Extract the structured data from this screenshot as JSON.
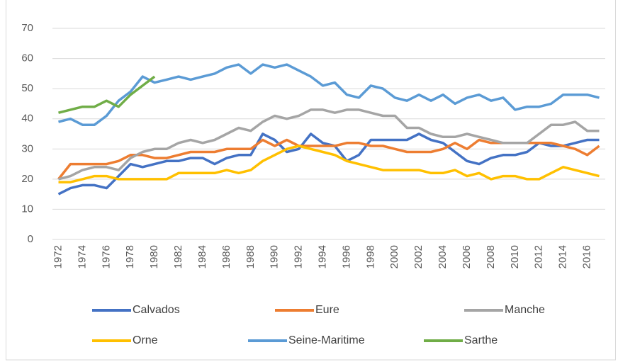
{
  "chart_data": {
    "type": "line",
    "categories": [
      "1972",
      null,
      "1974",
      null,
      "1976",
      null,
      "1978",
      null,
      "1980",
      null,
      "1982",
      null,
      "1984",
      null,
      "1986",
      null,
      "1988",
      null,
      "1990",
      null,
      "1992",
      null,
      "1994",
      null,
      "1996",
      null,
      "1998",
      null,
      "2000",
      null,
      "2002",
      null,
      "2004",
      null,
      "2006",
      null,
      "2008",
      null,
      "2010",
      null,
      "2012",
      null,
      "2014",
      null,
      "2016",
      null
    ],
    "series": [
      {
        "name": "Calvados",
        "color": "#4472c4",
        "values": [
          15,
          17,
          18,
          18,
          17,
          21,
          25,
          24,
          25,
          26,
          26,
          27,
          27,
          25,
          27,
          28,
          28,
          35,
          33,
          29,
          30,
          35,
          32,
          31,
          26,
          28,
          33,
          33,
          33,
          33,
          35,
          33,
          32,
          29,
          26,
          25,
          27,
          28,
          28,
          29,
          32,
          31,
          31,
          32,
          33,
          33
        ]
      },
      {
        "name": "Eure",
        "color": "#ed7d31",
        "values": [
          20,
          25,
          25,
          25,
          25,
          26,
          28,
          28,
          27,
          27,
          28,
          29,
          29,
          29,
          30,
          30,
          30,
          33,
          31,
          33,
          31,
          31,
          31,
          31,
          32,
          32,
          31,
          31,
          30,
          29,
          29,
          29,
          30,
          32,
          30,
          33,
          32,
          32,
          32,
          32,
          32,
          32,
          31,
          30,
          28,
          31
        ]
      },
      {
        "name": "Manche",
        "color": "#a5a5a5",
        "values": [
          20,
          21,
          23,
          24,
          24,
          23,
          27,
          29,
          30,
          30,
          32,
          33,
          32,
          33,
          35,
          37,
          36,
          39,
          41,
          40,
          41,
          43,
          43,
          42,
          43,
          43,
          42,
          41,
          41,
          37,
          37,
          35,
          34,
          34,
          35,
          34,
          33,
          32,
          32,
          32,
          35,
          38,
          38,
          39,
          36,
          36
        ]
      },
      {
        "name": "Orne",
        "color": "#ffc000",
        "values": [
          19,
          19,
          20,
          21,
          21,
          20,
          20,
          20,
          20,
          20,
          22,
          22,
          22,
          22,
          23,
          22,
          23,
          26,
          28,
          30,
          31,
          30,
          29,
          28,
          26,
          25,
          24,
          23,
          23,
          23,
          23,
          22,
          22,
          23,
          21,
          22,
          20,
          21,
          21,
          20,
          20,
          22,
          24,
          23,
          22,
          21
        ]
      },
      {
        "name": "Seine-Maritime",
        "color": "#5b9bd5",
        "values": [
          39,
          40,
          38,
          38,
          41,
          46,
          49,
          54,
          52,
          53,
          54,
          53,
          54,
          55,
          57,
          58,
          55,
          58,
          57,
          58,
          56,
          54,
          51,
          52,
          48,
          47,
          51,
          50,
          47,
          46,
          48,
          46,
          48,
          45,
          47,
          48,
          46,
          47,
          43,
          44,
          44,
          45,
          48,
          48,
          48,
          47
        ]
      },
      {
        "name": "Sarthe",
        "color": "#70ad47",
        "values": [
          42,
          43,
          44,
          44,
          46,
          44,
          48,
          51,
          54,
          null,
          null,
          null,
          null,
          null,
          null,
          null,
          null,
          null,
          null,
          null,
          null,
          null,
          null,
          null,
          null,
          null,
          null,
          null,
          null,
          null,
          null,
          null,
          null,
          null,
          null,
          null,
          null,
          null,
          null,
          null,
          null,
          null,
          null,
          null,
          null,
          null
        ]
      }
    ],
    "ylim": [
      0,
      70
    ],
    "yticks": [
      0,
      10,
      20,
      30,
      40,
      50,
      60,
      70
    ],
    "grid": true,
    "legend": "bottom"
  }
}
